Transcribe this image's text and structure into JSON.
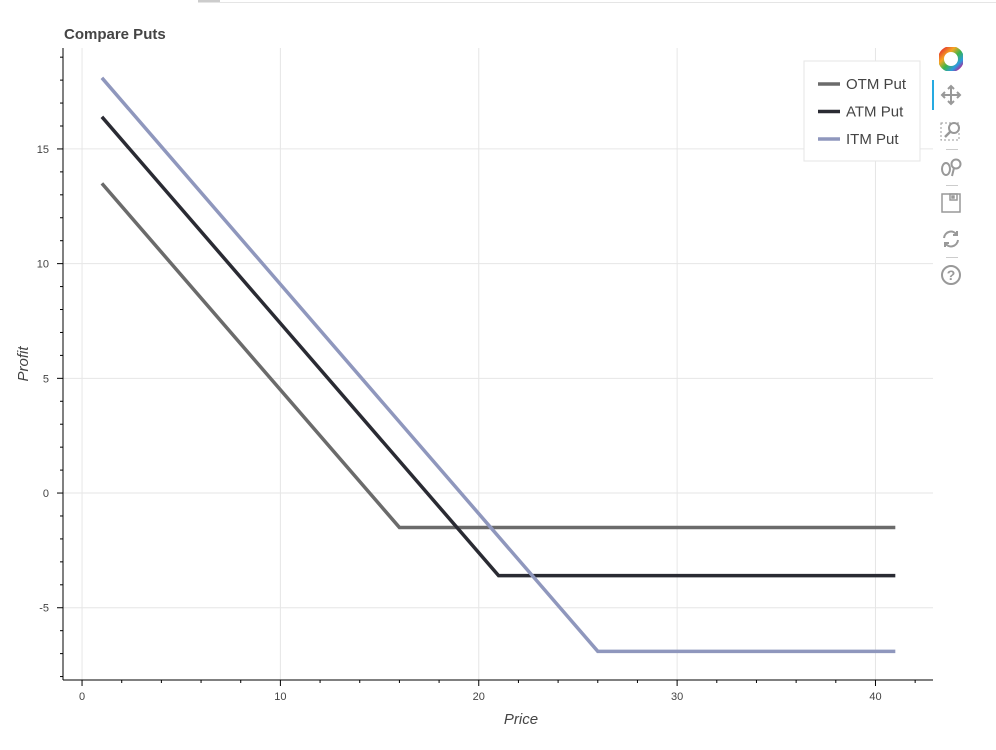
{
  "chart_data": {
    "type": "line",
    "title": "Compare Puts",
    "xlabel": "Price",
    "ylabel": "Profit",
    "xlim": [
      -0.96,
      42.9
    ],
    "ylim": [
      -8.15,
      19.4
    ],
    "xticks": [
      0,
      10,
      20,
      30,
      40
    ],
    "yticks": [
      -5,
      0,
      5,
      10,
      15
    ],
    "grid": true,
    "legend_position": "top-right",
    "series": [
      {
        "name": "OTM Put",
        "color": "#6b6b6b",
        "x": [
          1,
          16,
          41
        ],
        "y": [
          13.5,
          -1.5,
          -1.5
        ]
      },
      {
        "name": "ATM Put",
        "color": "#2a2b33",
        "x": [
          1,
          21,
          41
        ],
        "y": [
          16.4,
          -3.6,
          -3.6
        ]
      },
      {
        "name": "ITM Put",
        "color": "#8f97bd",
        "x": [
          1,
          26,
          41
        ],
        "y": [
          18.1,
          -6.9,
          -6.9
        ]
      }
    ]
  },
  "toolbar": {
    "tools": [
      "bokeh-logo-icon",
      "pan-icon",
      "box-zoom-icon",
      "wheel-zoom-icon",
      "save-icon",
      "reset-icon",
      "help-icon"
    ],
    "active": "pan-icon",
    "active_color": "#26aae1"
  }
}
